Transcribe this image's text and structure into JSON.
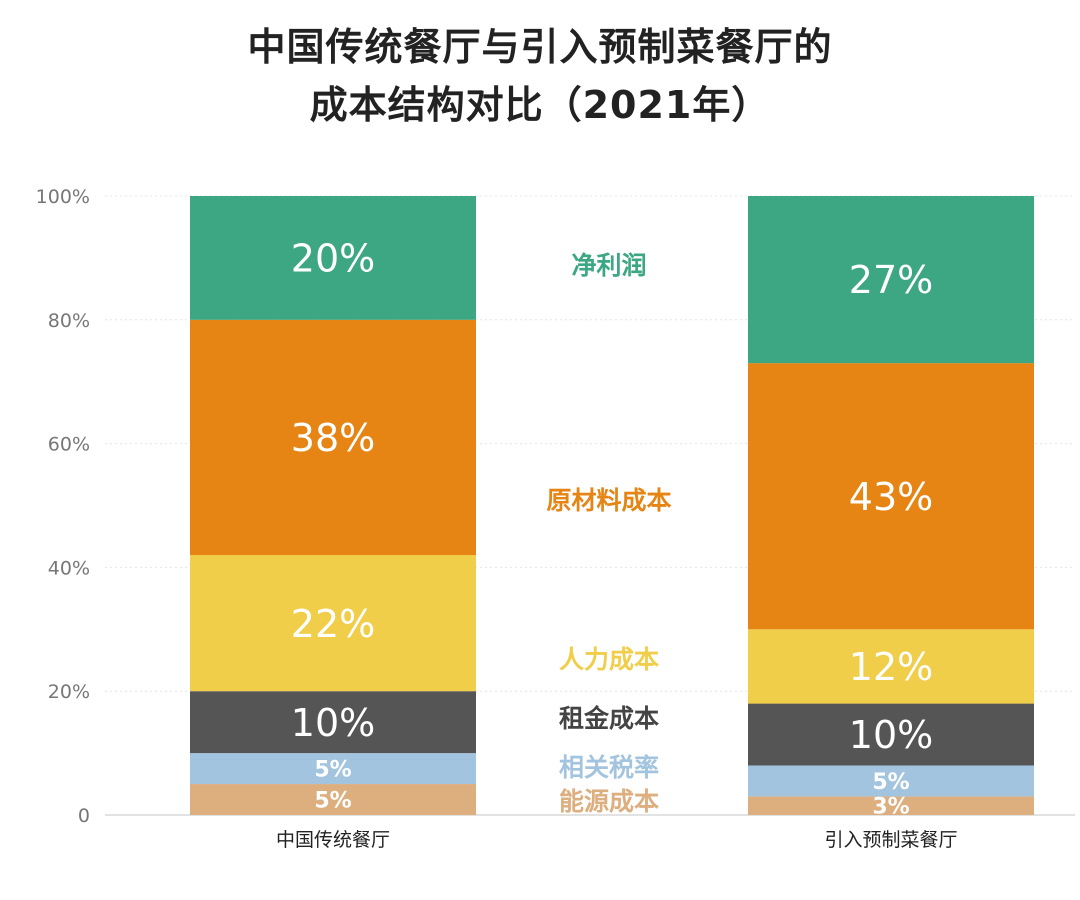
{
  "chart_data": {
    "type": "bar",
    "stacked": true,
    "title_lines": [
      "中国传统餐厅与引入预制菜餐厅的",
      "成本结构对比（2021年）"
    ],
    "categories": [
      "中国传统餐厅",
      "引入预制菜餐厅"
    ],
    "series": [
      {
        "name": "能源成本",
        "values": [
          5,
          3
        ],
        "labels": [
          "5%",
          "3%"
        ],
        "color": "#DDAE7E",
        "label_color": "#DDAE7E"
      },
      {
        "name": "相关税率",
        "values": [
          5,
          5
        ],
        "labels": [
          "5%",
          "5%"
        ],
        "color": "#A3C4DE",
        "label_color": "#A3C4DE"
      },
      {
        "name": "租金成本",
        "values": [
          10,
          10
        ],
        "labels": [
          "10%",
          "10%"
        ],
        "color": "#555555",
        "label_color": "#444444"
      },
      {
        "name": "人力成本",
        "values": [
          22,
          12
        ],
        "labels": [
          "22%",
          "12%"
        ],
        "color": "#F1CE4A",
        "label_color": "#F1CE4A"
      },
      {
        "name": "原材料成本",
        "values": [
          38,
          43
        ],
        "labels": [
          "38%",
          "43%"
        ],
        "color": "#E68414",
        "label_color": "#E68414"
      },
      {
        "name": "净利润",
        "values": [
          20,
          27
        ],
        "labels": [
          "20%",
          "27%"
        ],
        "color": "#3DA784",
        "label_color": "#3DA784"
      }
    ],
    "yticks": [
      "0",
      "20%",
      "40%",
      "60%",
      "80%",
      "100%"
    ],
    "ylim": [
      0,
      100
    ],
    "grid": true,
    "legend_placement": "center-between-bars"
  }
}
